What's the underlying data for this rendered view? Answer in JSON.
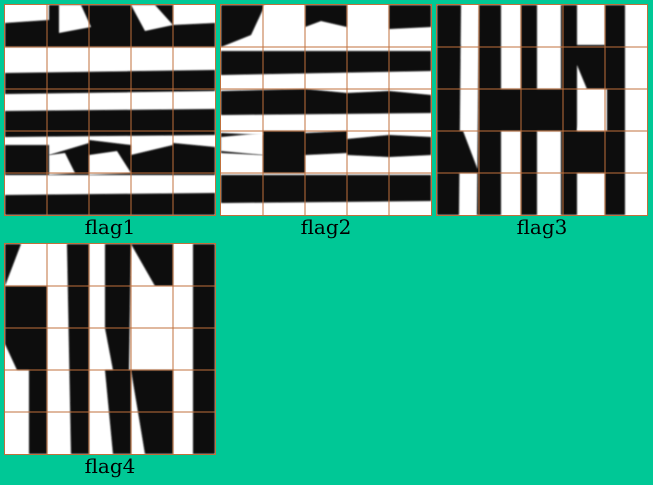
{
  "background_color": "#00c896",
  "grid_line_color": "#c0703c",
  "tiles": [
    {
      "caption": "flag1"
    },
    {
      "caption": "flag2"
    },
    {
      "caption": "flag3"
    },
    {
      "caption": "flag4"
    }
  ]
}
